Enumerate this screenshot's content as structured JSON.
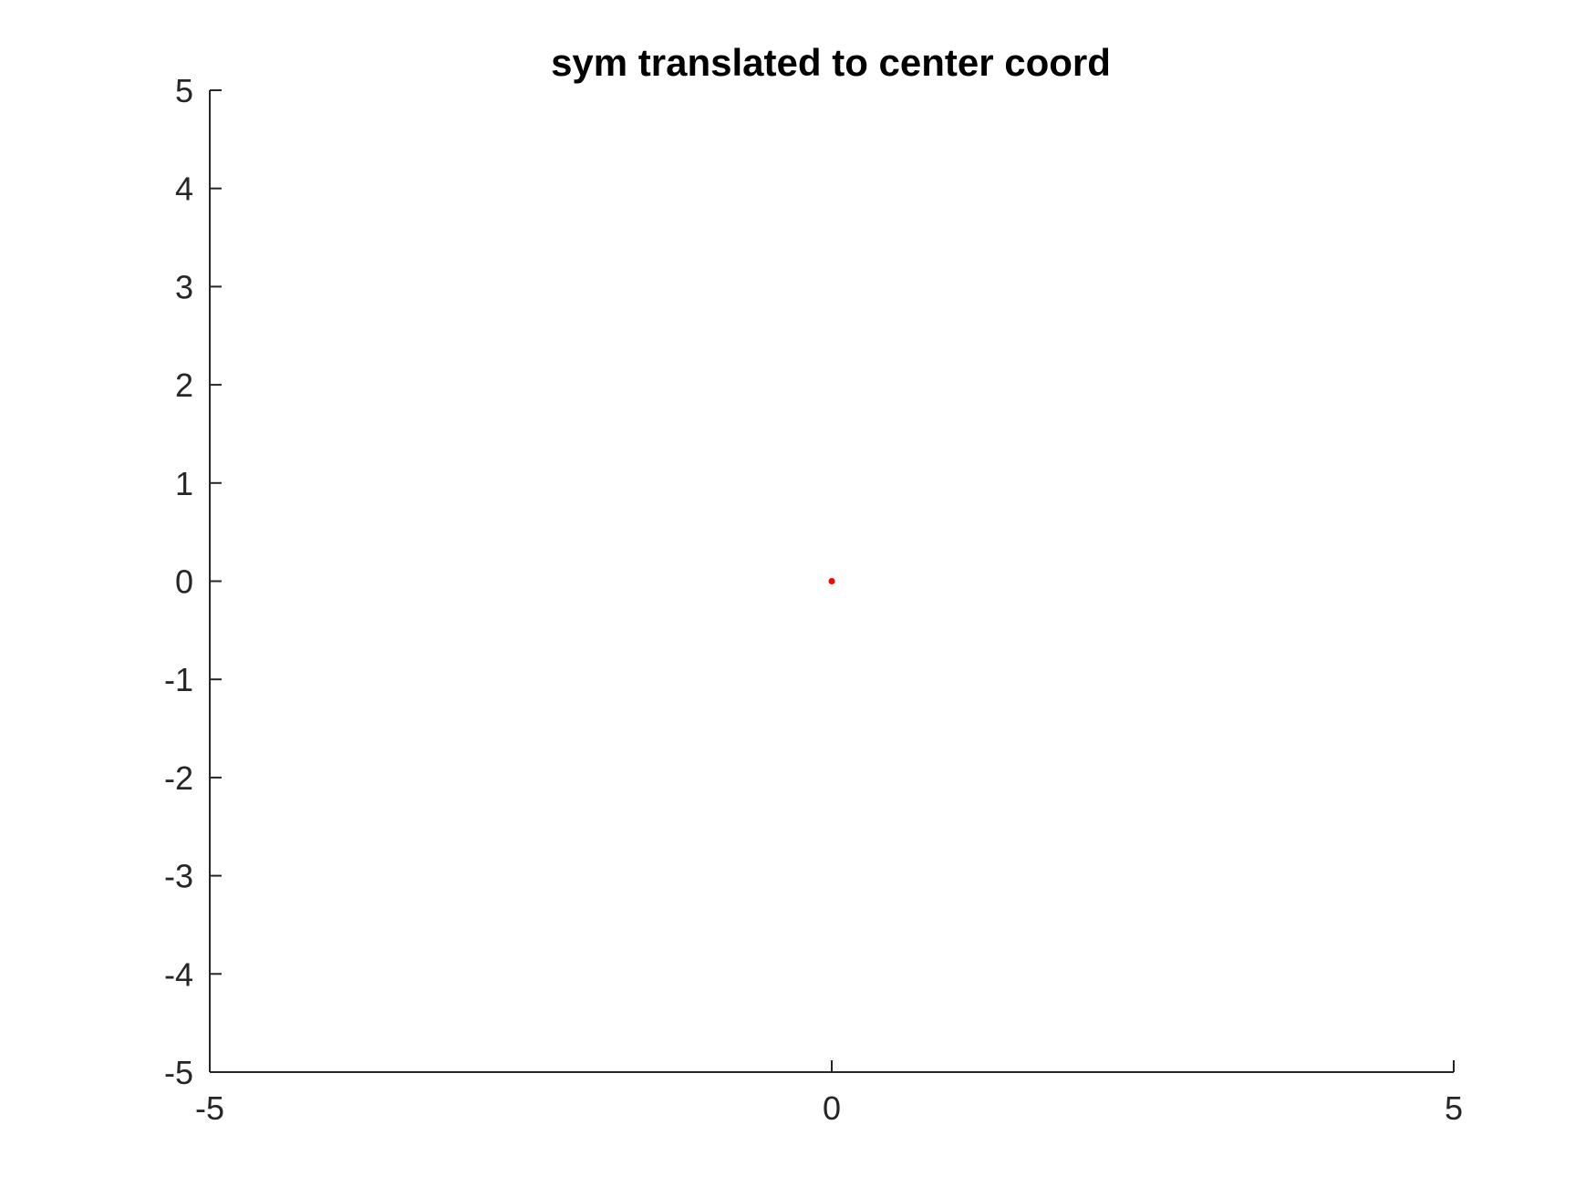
{
  "chart_data": {
    "type": "scatter",
    "title": "sym translated to center coord",
    "xlabel": "",
    "ylabel": "",
    "xlim": [
      -5,
      5
    ],
    "ylim": [
      -5,
      5
    ],
    "xticks": [
      -5,
      0,
      5
    ],
    "xtick_labels": [
      "-5",
      "0",
      "5"
    ],
    "yticks": [
      5,
      4,
      3,
      2,
      1,
      0,
      -1,
      -2,
      -3,
      -4,
      -5
    ],
    "ytick_labels": [
      "5",
      "4",
      "3",
      "2",
      "1",
      "0",
      "-1",
      "-2",
      "-3",
      "-4",
      "-5"
    ],
    "grid": false,
    "series": [
      {
        "color": "#ff0000",
        "points": [
          {
            "x": 0,
            "y": 0
          }
        ]
      }
    ]
  },
  "colors": {
    "axis": "#262626",
    "title": "#000000",
    "background": "#ffffff"
  }
}
